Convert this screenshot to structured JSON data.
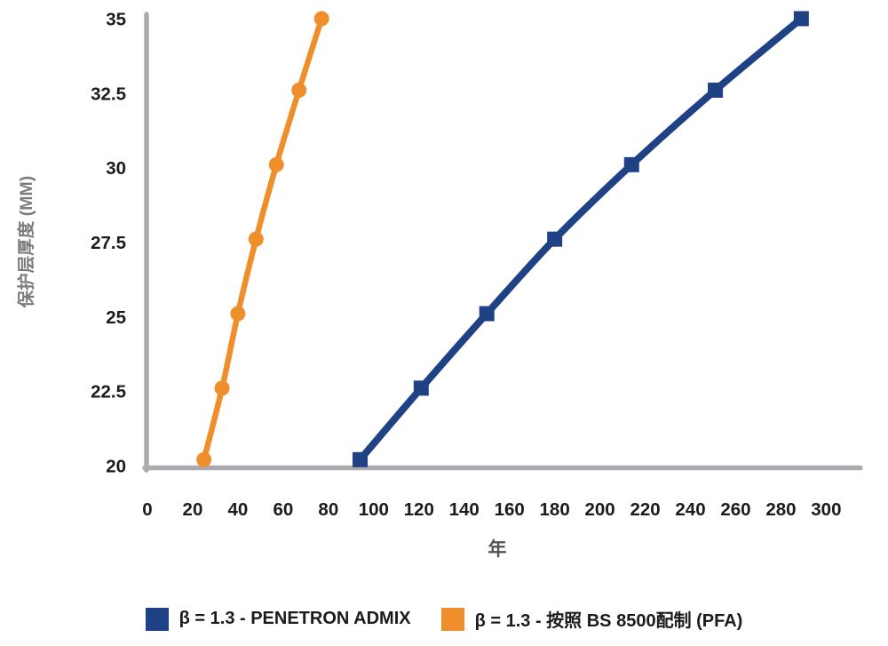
{
  "chart_data": {
    "type": "line",
    "title": "",
    "xlabel": "年",
    "ylabel": "保护层厚度 (MM)",
    "xlim": [
      0,
      300
    ],
    "ylim": [
      20,
      35
    ],
    "x_ticks": [
      0,
      20,
      40,
      60,
      80,
      100,
      120,
      140,
      160,
      180,
      200,
      220,
      240,
      260,
      280,
      300
    ],
    "y_ticks": [
      20,
      22.5,
      25,
      27.5,
      30,
      32.5,
      35
    ],
    "grid": false,
    "legend_position": "bottom",
    "axis_color": "#a9abae",
    "series": [
      {
        "name": "β = 1.3 - PENETRON ADMIX",
        "color": "#1f4287",
        "marker": "square",
        "x": [
          94,
          121,
          150,
          180,
          214,
          251,
          289
        ],
        "y": [
          20.2,
          22.6,
          25.1,
          27.6,
          30.1,
          32.6,
          35
        ]
      },
      {
        "name": "β = 1.3 - 按照 BS 8500配制 (PFA)",
        "color": "#ef8f2c",
        "marker": "circle",
        "x": [
          25,
          33,
          40,
          48,
          57,
          67,
          77
        ],
        "y": [
          20.2,
          22.6,
          25.1,
          27.6,
          30.1,
          32.6,
          35
        ]
      }
    ]
  }
}
